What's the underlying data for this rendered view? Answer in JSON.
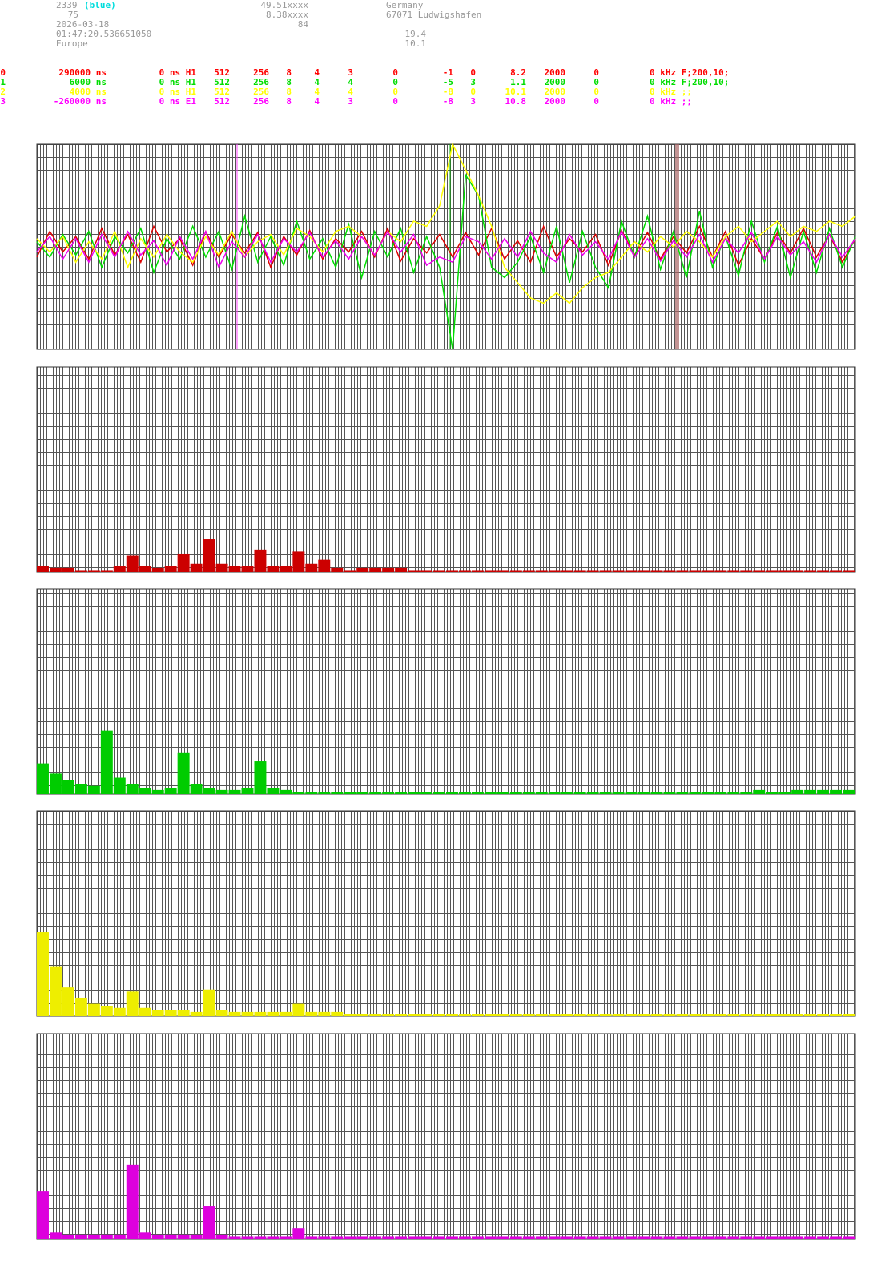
{
  "header": {
    "station_id": "2339",
    "station_color": "(blue)",
    "line2": "75",
    "date": "2026-03-18",
    "time": "01:47:20.536651050",
    "region": "Europe",
    "lat": "49.51xxxx",
    "lon": "8.38xxxx",
    "alt": "84",
    "country": "Germany",
    "city": "67071 Ludwigshafen",
    "v1": "19.4",
    "v2": "10.1"
  },
  "channels": {
    "rows": [
      {
        "color": "#ff0000",
        "cells": [
          "0",
          "290000 ns",
          "0 ns H1",
          "512",
          "256",
          "8",
          "4",
          "3",
          "0",
          "-1",
          "0",
          "8.2",
          "2000",
          "0",
          "0 kHz F;200,10;"
        ]
      },
      {
        "color": "#00dd00",
        "cells": [
          "1",
          "6000 ns",
          "0 ns H1",
          "512",
          "256",
          "8",
          "4",
          "4",
          "0",
          "-5",
          "3",
          "1.1",
          "2000",
          "0",
          "0 kHz F;200,10;"
        ]
      },
      {
        "color": "#ffff00",
        "cells": [
          "2",
          "4000 ns",
          "0 ns H1",
          "512",
          "256",
          "8",
          "4",
          "4",
          "0",
          "-8",
          "0",
          "10.1",
          "2000",
          "0",
          "0 kHz ;;"
        ]
      },
      {
        "color": "#ff00ff",
        "cells": [
          "3",
          "-260000 ns",
          "0 ns E1",
          "512",
          "256",
          "8",
          "4",
          "3",
          "0",
          "-8",
          "3",
          "10.8",
          "2000",
          "0",
          "0 kHz ;;"
        ]
      }
    ]
  },
  "waveform": {
    "series": [
      {
        "color": "#dd0000",
        "values": [
          -10,
          15,
          -5,
          10,
          -12,
          18,
          -8,
          12,
          -15,
          20,
          -5,
          8,
          -18,
          15,
          -10,
          12,
          -6,
          14,
          -20,
          10,
          -8,
          16,
          -12,
          8,
          -5,
          15,
          -10,
          18,
          -14,
          8,
          -6,
          12,
          -10,
          14,
          -8,
          18,
          -12,
          6,
          -15,
          20,
          -10,
          8,
          -5,
          12,
          -18,
          16,
          -8,
          14,
          -12,
          10,
          -6,
          20,
          -10,
          15,
          -18,
          8,
          -12,
          14,
          -6,
          18,
          -10,
          12,
          -15,
          8
        ]
      },
      {
        "color": "#00dd00",
        "values": [
          5,
          -10,
          12,
          -8,
          15,
          -20,
          10,
          -6,
          18,
          -25,
          8,
          -12,
          20,
          -10,
          15,
          -22,
          30,
          -15,
          10,
          -18,
          25,
          -12,
          8,
          -20,
          22,
          -30,
          15,
          -10,
          18,
          -25,
          10,
          -20,
          -100,
          70,
          50,
          -20,
          -30,
          -15,
          10,
          -25,
          20,
          -35,
          15,
          -20,
          -40,
          25,
          -10,
          30,
          -22,
          15,
          -30,
          35,
          -20,
          10,
          -28,
          25,
          -15,
          20,
          -30,
          15,
          -25,
          18,
          -20,
          10
        ]
      },
      {
        "color": "#ffff00",
        "values": [
          8,
          -5,
          10,
          -15,
          5,
          -12,
          15,
          -20,
          8,
          -10,
          12,
          -5,
          -15,
          10,
          -8,
          15,
          -10,
          5,
          12,
          -8,
          18,
          10,
          -5,
          15,
          20,
          10,
          -8,
          15,
          5,
          25,
          20,
          40,
          100,
          75,
          50,
          20,
          -20,
          -35,
          -50,
          -55,
          -45,
          -55,
          -40,
          -30,
          -25,
          -10,
          5,
          -5,
          10,
          0,
          15,
          5,
          -10,
          10,
          20,
          5,
          15,
          25,
          10,
          20,
          15,
          25,
          20,
          30
        ]
      },
      {
        "color": "#ee00ee",
        "values": [
          -5,
          10,
          -12,
          8,
          -15,
          12,
          -10,
          15,
          -8,
          6,
          -18,
          10,
          -12,
          15,
          -20,
          5,
          -10,
          12,
          -15,
          8,
          -5,
          14,
          -10,
          6,
          -12,
          10,
          -8,
          15,
          -5,
          12,
          -18,
          -10,
          -15,
          10,
          5,
          -12,
          8,
          -10,
          15,
          -6,
          -15,
          12,
          -8,
          5,
          -12,
          15,
          -10,
          8,
          -14,
          6,
          -10,
          12,
          -15,
          8,
          -6,
          14,
          -12,
          10,
          -8,
          5,
          -15,
          12,
          -10,
          8
        ]
      }
    ]
  },
  "spectra": [
    {
      "color": "#cc0000",
      "values": [
        3,
        2,
        2,
        1,
        1,
        1,
        3,
        8,
        3,
        2,
        3,
        9,
        4,
        16,
        4,
        3,
        3,
        11,
        3,
        3,
        10,
        4,
        6,
        2,
        1,
        2,
        2,
        2,
        2,
        1,
        1,
        1,
        1,
        1,
        1,
        1,
        1,
        1,
        1,
        1,
        1,
        1,
        1,
        1,
        1,
        1,
        1,
        1,
        1,
        1,
        1,
        1,
        1,
        1,
        1,
        1,
        1,
        1,
        1,
        1,
        1,
        1,
        1,
        1
      ]
    },
    {
      "color": "#00cc00",
      "values": [
        15,
        10,
        7,
        5,
        4,
        31,
        8,
        5,
        3,
        2,
        3,
        20,
        5,
        3,
        2,
        2,
        3,
        16,
        3,
        2,
        1,
        1,
        1,
        1,
        1,
        1,
        1,
        1,
        1,
        1,
        1,
        1,
        1,
        1,
        1,
        1,
        1,
        1,
        1,
        1,
        1,
        1,
        1,
        1,
        1,
        1,
        1,
        1,
        1,
        1,
        1,
        1,
        1,
        1,
        1,
        1,
        2,
        1,
        1,
        2,
        2,
        2,
        2,
        2
      ]
    },
    {
      "color": "#eeee00",
      "values": [
        41,
        24,
        14,
        9,
        6,
        5,
        4,
        12,
        4,
        3,
        3,
        3,
        2,
        13,
        3,
        2,
        2,
        2,
        2,
        2,
        6,
        2,
        2,
        2,
        1,
        1,
        1,
        1,
        1,
        1,
        1,
        1,
        1,
        1,
        1,
        1,
        1,
        1,
        1,
        1,
        1,
        1,
        1,
        1,
        1,
        1,
        1,
        1,
        1,
        1,
        1,
        1,
        1,
        1,
        1,
        1,
        1,
        1,
        1,
        1,
        1,
        1,
        1,
        1
      ]
    },
    {
      "color": "#dd00dd",
      "values": [
        23,
        3,
        2,
        2,
        2,
        2,
        2,
        36,
        3,
        2,
        2,
        2,
        2,
        16,
        2,
        1,
        1,
        1,
        1,
        1,
        5,
        1,
        1,
        1,
        1,
        1,
        1,
        1,
        1,
        1,
        1,
        1,
        1,
        1,
        1,
        1,
        1,
        1,
        1,
        1,
        1,
        1,
        1,
        1,
        1,
        1,
        1,
        1,
        1,
        1,
        1,
        1,
        1,
        1,
        1,
        1,
        1,
        1,
        1,
        1,
        1,
        1,
        1,
        1
      ]
    }
  ]
}
